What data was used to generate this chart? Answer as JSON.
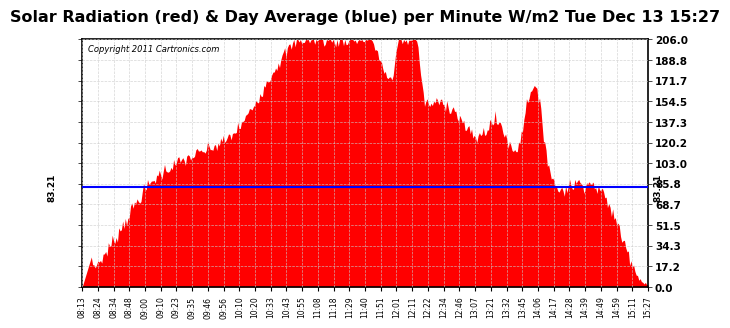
{
  "title": "Solar Radiation (red) & Day Average (blue) per Minute W/m2 Tue Dec 13 15:27",
  "copyright": "Copyright 2011 Cartronics.com",
  "avg_value": 83.21,
  "avg_label": "83.21",
  "ymin": 0.0,
  "ymax": 206.0,
  "yticks": [
    0.0,
    17.2,
    34.3,
    51.5,
    68.7,
    85.8,
    103.0,
    120.2,
    137.3,
    154.5,
    171.7,
    188.8,
    206.0
  ],
  "fill_color": "#FF0000",
  "line_color": "#0000FF",
  "bg_color": "#FFFFFF",
  "grid_color": "#CCCCCC",
  "title_fontsize": 12,
  "x_labels": [
    "08:13",
    "08:24",
    "08:34",
    "08:48",
    "09:00",
    "09:10",
    "09:23",
    "09:35",
    "09:46",
    "09:56",
    "10:10",
    "10:20",
    "10:33",
    "10:43",
    "10:55",
    "11:08",
    "11:18",
    "11:29",
    "11:40",
    "11:51",
    "12:01",
    "12:11",
    "12:22",
    "12:34",
    "12:46",
    "13:07",
    "13:21",
    "13:32",
    "13:45",
    "14:06",
    "14:17",
    "14:28",
    "14:39",
    "14:49",
    "14:59",
    "15:11",
    "15:27"
  ]
}
